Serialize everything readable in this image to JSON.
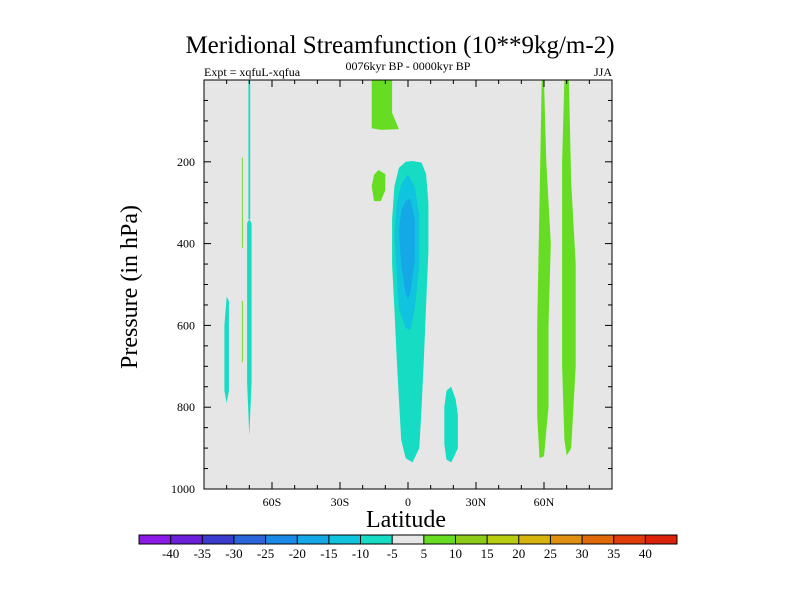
{
  "chart_data": {
    "type": "contour",
    "title": "Meridional Streamfunction (10**9kg/m-2)",
    "subtitle_left": "Expt = xqfuL-xqfua",
    "subtitle_center": "0076kyr BP - 0000kyr BP",
    "subtitle_right": "JJA",
    "xlabel": "Latitude",
    "ylabel": "Pressure (in hPa)",
    "xlim": [
      -90,
      90
    ],
    "ylim": [
      0,
      1000
    ],
    "xticks": [
      {
        "value": -60,
        "label": "60S"
      },
      {
        "value": -30,
        "label": "30S"
      },
      {
        "value": 0,
        "label": "0"
      },
      {
        "value": 30,
        "label": "30N"
      },
      {
        "value": 60,
        "label": "60N"
      }
    ],
    "yticks": [
      {
        "value": 200,
        "label": "200"
      },
      {
        "value": 400,
        "label": "400"
      },
      {
        "value": 600,
        "label": "600"
      },
      {
        "value": 800,
        "label": "800"
      },
      {
        "value": 1000,
        "label": "1000"
      }
    ],
    "background_color": "#e6e6e6",
    "colorbar": {
      "labels": [
        "-40",
        "-35",
        "-30",
        "-25",
        "-20",
        "-15",
        "-10",
        "-5",
        "5",
        "10",
        "15",
        "20",
        "25",
        "30",
        "35",
        "40"
      ],
      "colors": [
        "#8c1ae6",
        "#6a21d9",
        "#3b3bcc",
        "#2a66d9",
        "#1a8ae6",
        "#14a8e6",
        "#10c4e0",
        "#16dcc4",
        "#e6e6e6",
        "#66dd22",
        "#8ccc18",
        "#b8cc10",
        "#d8b410",
        "#e09010",
        "#e06a0a",
        "#e03c0a",
        "#dc2208"
      ]
    },
    "contours": [
      {
        "name": "tropical-outer-cell",
        "level": -5,
        "color": "#16dcc4",
        "points": [
          [
            2,
            198
          ],
          [
            6,
            202
          ],
          [
            8,
            230
          ],
          [
            9,
            300
          ],
          [
            9,
            420
          ],
          [
            8,
            550
          ],
          [
            7,
            680
          ],
          [
            6,
            800
          ],
          [
            5,
            900
          ],
          [
            2,
            935
          ],
          [
            -1,
            925
          ],
          [
            -3,
            880
          ],
          [
            -4,
            780
          ],
          [
            -5,
            680
          ],
          [
            -6,
            560
          ],
          [
            -7,
            450
          ],
          [
            -7,
            340
          ],
          [
            -6,
            260
          ],
          [
            -4,
            215
          ],
          [
            -1,
            200
          ]
        ]
      },
      {
        "name": "tropical-middle-cell",
        "level": -10,
        "color": "#10c4e0",
        "points": [
          [
            0,
            230
          ],
          [
            3,
            262
          ],
          [
            5,
            330
          ],
          [
            5,
            450
          ],
          [
            3,
            560
          ],
          [
            1,
            612
          ],
          [
            -1,
            606
          ],
          [
            -4,
            560
          ],
          [
            -5,
            470
          ],
          [
            -6,
            380
          ],
          [
            -5,
            300
          ],
          [
            -3,
            255
          ]
        ]
      },
      {
        "name": "tropical-core-cell",
        "level": -15,
        "color": "#14a8e6",
        "points": [
          [
            1,
            290
          ],
          [
            3,
            340
          ],
          [
            3,
            440
          ],
          [
            1,
            520
          ],
          [
            0,
            536
          ],
          [
            -1,
            522
          ],
          [
            -3,
            450
          ],
          [
            -4,
            370
          ],
          [
            -3,
            320
          ],
          [
            -1,
            295
          ]
        ]
      },
      {
        "name": "nh-subtropic-cell",
        "level": -5,
        "color": "#16dcc4",
        "points": [
          [
            19,
            750
          ],
          [
            21,
            780
          ],
          [
            22,
            820
          ],
          [
            22,
            900
          ],
          [
            20,
            925
          ],
          [
            19,
            935
          ],
          [
            17,
            928
          ],
          [
            16,
            890
          ],
          [
            16,
            800
          ],
          [
            17,
            760
          ]
        ]
      },
      {
        "name": "sh-polar-sliver-a",
        "level": -5,
        "color": "#16dcc4",
        "points": [
          [
            -80,
            530
          ],
          [
            -79,
            540
          ],
          [
            -79,
            760
          ],
          [
            -80,
            790
          ],
          [
            -81,
            760
          ],
          [
            -81,
            600
          ]
        ]
      },
      {
        "name": "sh-polar-sliver-b",
        "level": -5,
        "color": "#16dcc4",
        "points": [
          [
            -70,
            340
          ],
          [
            -69,
            350
          ],
          [
            -69,
            740
          ],
          [
            -70,
            870
          ],
          [
            -71,
            740
          ],
          [
            -71,
            350
          ]
        ]
      },
      {
        "name": "sh-polar-needle",
        "level": -5,
        "color": "#16dcc4",
        "points": [
          [
            -70,
            0
          ],
          [
            -69.6,
            0
          ],
          [
            -69.6,
            340
          ],
          [
            -70.4,
            340
          ],
          [
            -70.4,
            0
          ]
        ]
      },
      {
        "name": "upper-tropics-band",
        "level": 5,
        "color": "#66dd22",
        "points": [
          [
            -16,
            0
          ],
          [
            -7,
            0
          ],
          [
            -7,
            80
          ],
          [
            -4,
            120
          ],
          [
            -12,
            122
          ],
          [
            -16,
            118
          ]
        ]
      },
      {
        "name": "upper-tropics-blob",
        "level": 5,
        "color": "#66dd22",
        "points": [
          [
            -13,
            220
          ],
          [
            -10,
            230
          ],
          [
            -10,
            270
          ],
          [
            -12,
            296
          ],
          [
            -15,
            296
          ],
          [
            -16,
            260
          ],
          [
            -15,
            232
          ]
        ]
      },
      {
        "name": "nh-polar-band-a",
        "level": 5,
        "color": "#66dd22",
        "points": [
          [
            59,
            0
          ],
          [
            60,
            0
          ],
          [
            61,
            200
          ],
          [
            63,
            400
          ],
          [
            62,
            600
          ],
          [
            62,
            800
          ],
          [
            60,
            920
          ],
          [
            58,
            925
          ],
          [
            57,
            820
          ],
          [
            57,
            600
          ],
          [
            58,
            300
          ]
        ]
      },
      {
        "name": "nh-polar-band-b",
        "level": 5,
        "color": "#66dd22",
        "points": [
          [
            69,
            0
          ],
          [
            71,
            0
          ],
          [
            72,
            250
          ],
          [
            74,
            450
          ],
          [
            74,
            700
          ],
          [
            72,
            900
          ],
          [
            70,
            918
          ],
          [
            69,
            880
          ],
          [
            68,
            700
          ],
          [
            68,
            400
          ],
          [
            68,
            200
          ]
        ]
      },
      {
        "name": "sh-polar-green-needle",
        "level": 5,
        "color": "#66dd22",
        "points": [
          [
            -73.3,
            190
          ],
          [
            -72.9,
            190
          ],
          [
            -72.9,
            410
          ],
          [
            -73.3,
            410
          ]
        ]
      },
      {
        "name": "sh-polar-green-needle-2",
        "level": 5,
        "color": "#66dd22",
        "points": [
          [
            -73.3,
            540
          ],
          [
            -72.9,
            540
          ],
          [
            -72.9,
            690
          ],
          [
            -73.3,
            690
          ]
        ]
      }
    ]
  }
}
